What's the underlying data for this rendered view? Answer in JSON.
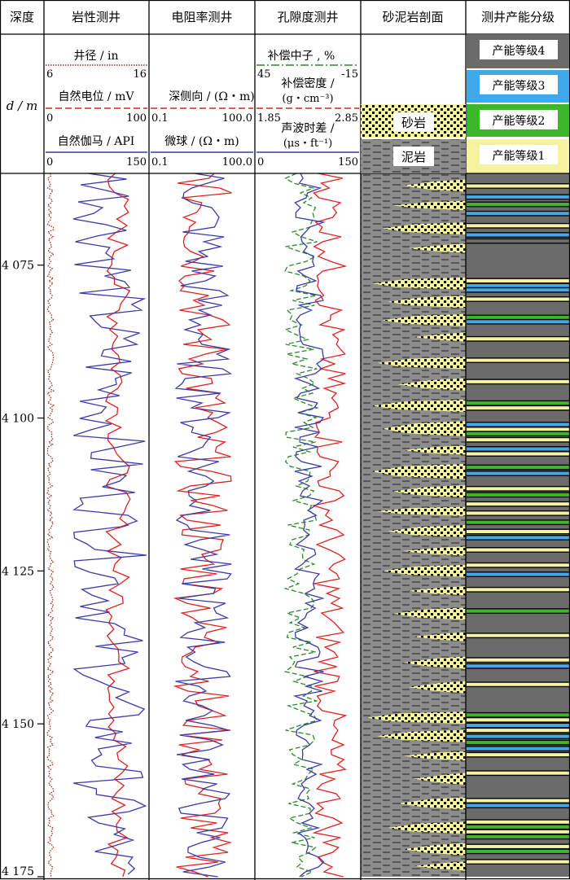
{
  "columns": [
    {
      "title": "深度",
      "sub": "d / m"
    },
    {
      "title": "岩性测井"
    },
    {
      "title": "电阻率测井"
    },
    {
      "title": "孔隙度测井"
    },
    {
      "title": "砂泥岩剖面"
    },
    {
      "title": "测井产能分级"
    }
  ],
  "track1": {
    "caliper": {
      "label": "井径 / in",
      "min": "6",
      "max": "16",
      "color": "#a0301a"
    },
    "sp": {
      "label": "自然电位 / mV",
      "min": "0",
      "max": "100",
      "color": "#e02020"
    },
    "gr": {
      "label": "自然伽马 / API",
      "min": "0",
      "max": "150",
      "color": "#3a3aa8"
    }
  },
  "track2": {
    "lld": {
      "label": "深侧向 / (Ω・m)",
      "min": "0.1",
      "max": "100.0",
      "color": "#e02020"
    },
    "msfl": {
      "label": "微球 / (Ω・m)",
      "min": "0.1",
      "max": "100.0",
      "color": "#3a3aa8"
    }
  },
  "track3": {
    "cnl": {
      "label": "补偿中子 , %",
      "min": "45",
      "max": "-15",
      "color": "#2a8a2a"
    },
    "den": {
      "label1": "补偿密度 /",
      "label2": "(g・cm⁻³)",
      "min": "1.85",
      "max": "2.85",
      "color": "#e02020"
    },
    "ac": {
      "label1": "声波时差 /",
      "label2": "(μs・ft⁻¹)",
      "min": "0",
      "max": "150",
      "color": "#3a3aa8"
    }
  },
  "lithology_legend": {
    "sand": "砂岩",
    "mud": "泥岩",
    "sand_color": "#f6f3a0",
    "mud_color": "#8c8c8c"
  },
  "grades": [
    {
      "label": "产能等级4",
      "color": "#6b6b6b"
    },
    {
      "label": "产能等级3",
      "color": "#3fa9ea"
    },
    {
      "label": "产能等级2",
      "color": "#3cb72a"
    },
    {
      "label": "产能等级1",
      "color": "#f6f3a0"
    }
  ],
  "chart_data": {
    "type": "well-log",
    "depth_range": [
      4060,
      4175
    ],
    "depth_ticks": [
      "4 075",
      "4 100",
      "4 125",
      "4 150",
      "4 175"
    ],
    "depth_tick_values": [
      4075,
      4100,
      4125,
      4150,
      4175
    ],
    "sand_beds": [
      [
        4061,
        4063,
        0.6
      ],
      [
        4064.5,
        4066,
        0.7
      ],
      [
        4068,
        4070,
        0.8
      ],
      [
        4071.5,
        4073,
        0.55
      ],
      [
        4077,
        4079,
        0.9
      ],
      [
        4080,
        4082,
        0.75
      ],
      [
        4083,
        4085,
        0.8
      ],
      [
        4086,
        4087.5,
        0.5
      ],
      [
        4090,
        4092,
        0.85
      ],
      [
        4093.5,
        4095.5,
        0.65
      ],
      [
        4097,
        4099,
        0.9
      ],
      [
        4100.5,
        4103,
        0.8
      ],
      [
        4104.5,
        4106,
        0.6
      ],
      [
        4107.5,
        4110,
        0.9
      ],
      [
        4111,
        4113,
        0.7
      ],
      [
        4114.5,
        4116,
        0.85
      ],
      [
        4117.5,
        4119.5,
        0.75
      ],
      [
        4121,
        4122.5,
        0.6
      ],
      [
        4124,
        4126,
        0.8
      ],
      [
        4127.5,
        4129,
        0.55
      ],
      [
        4131,
        4133,
        0.7
      ],
      [
        4135,
        4136.5,
        0.5
      ],
      [
        4139,
        4141,
        0.6
      ],
      [
        4143,
        4145,
        0.55
      ],
      [
        4148,
        4150,
        0.95
      ],
      [
        4151,
        4153,
        0.85
      ],
      [
        4154.5,
        4156,
        0.6
      ],
      [
        4158,
        4160,
        0.5
      ],
      [
        4162,
        4164,
        0.65
      ],
      [
        4166,
        4168,
        0.75
      ],
      [
        4169.5,
        4171.5,
        0.6
      ],
      [
        4172.5,
        4174,
        0.5
      ]
    ],
    "grade_bands": [
      [
        4062,
        1
      ],
      [
        4063.8,
        3
      ],
      [
        4065,
        2
      ],
      [
        4066.5,
        3
      ],
      [
        4068.5,
        1
      ],
      [
        4070,
        3
      ],
      [
        4071,
        4
      ],
      [
        4077.5,
        1
      ],
      [
        4078.3,
        3
      ],
      [
        4079,
        3
      ],
      [
        4080.5,
        1
      ],
      [
        4083.5,
        2
      ],
      [
        4084.2,
        3
      ],
      [
        4087,
        1
      ],
      [
        4090.5,
        1
      ],
      [
        4094,
        1
      ],
      [
        4097.5,
        2
      ],
      [
        4098.3,
        1
      ],
      [
        4101,
        3
      ],
      [
        4101.8,
        1
      ],
      [
        4102.5,
        2
      ],
      [
        4103.5,
        1
      ],
      [
        4105,
        3
      ],
      [
        4105.8,
        1
      ],
      [
        4108,
        2
      ],
      [
        4109,
        3
      ],
      [
        4111.5,
        1
      ],
      [
        4112.5,
        2
      ],
      [
        4114,
        1
      ],
      [
        4115.5,
        1
      ],
      [
        4117,
        2
      ],
      [
        4118.5,
        1
      ],
      [
        4119.5,
        3
      ],
      [
        4121.5,
        1
      ],
      [
        4124,
        1
      ],
      [
        4125.5,
        3
      ],
      [
        4128,
        1
      ],
      [
        4131.5,
        2
      ],
      [
        4135.5,
        1
      ],
      [
        4139.5,
        1
      ],
      [
        4140.5,
        3
      ],
      [
        4143.5,
        1
      ],
      [
        4148.5,
        2
      ],
      [
        4149.3,
        1
      ],
      [
        4150.2,
        3
      ],
      [
        4151,
        1
      ],
      [
        4152,
        3
      ],
      [
        4153,
        2
      ],
      [
        4154,
        3
      ],
      [
        4155,
        1
      ],
      [
        4158,
        1
      ],
      [
        4162.5,
        1
      ],
      [
        4163.3,
        3
      ],
      [
        4166,
        1
      ],
      [
        4166.8,
        2
      ],
      [
        4167.6,
        1
      ],
      [
        4168.4,
        2
      ],
      [
        4170,
        1
      ],
      [
        4170.8,
        2
      ],
      [
        4172.5,
        1
      ]
    ]
  }
}
